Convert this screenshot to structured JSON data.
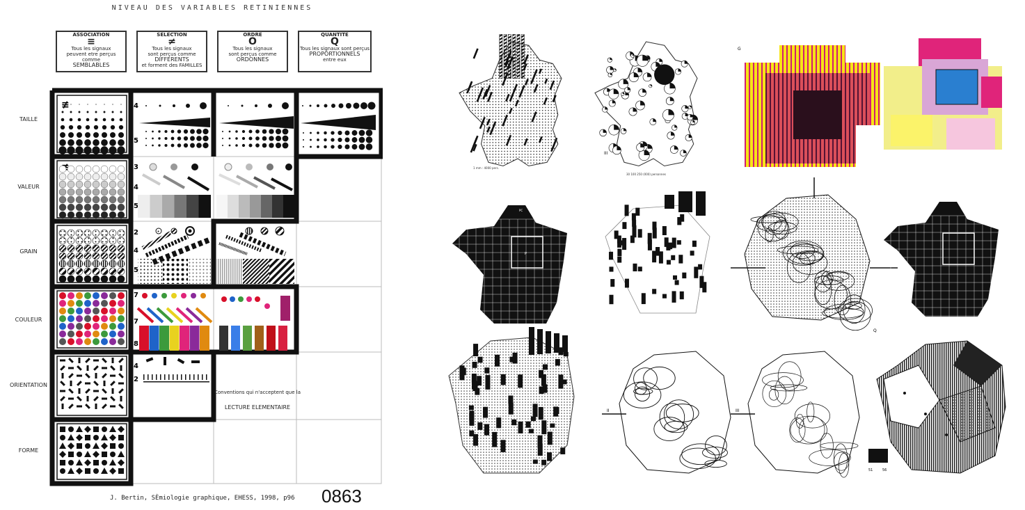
{
  "title": "NIVEAU DES VARIABLES RETINIENNES",
  "headers": [
    {
      "title": "ASSOCIATION",
      "symbol": "≡",
      "lines": [
        "Tous les signaux",
        "peuvent etre perçus comme"
      ],
      "emph": "SEMBLABLES",
      "after": ""
    },
    {
      "title": "SELECTION",
      "symbol": "≠",
      "lines": [
        "Tous les signaux",
        "sont perçus comme"
      ],
      "emph": "DIFFERENTS",
      "after": "et forment des FAMILLES"
    },
    {
      "title": "ORDRE",
      "symbol": "O",
      "lines": [
        "Tous les signaux",
        "sont perçus comme"
      ],
      "emph": "ORDONNES",
      "after": ""
    },
    {
      "title": "QUANTITE",
      "symbol": "Q",
      "lines": [
        "Tous les signaux sont perçus"
      ],
      "emph": "PROPORTIONNELS",
      "after": "entre eux"
    }
  ],
  "rows": [
    "TAILLE",
    "VALEUR",
    "GRAIN",
    "COULEUR",
    "ORIENTATION",
    "FORME"
  ],
  "cell_numbers": {
    "taille_sel": [
      "4",
      "5"
    ],
    "valeur_sel": [
      "3",
      "4",
      "5"
    ],
    "grain_sel": [
      "2",
      "4",
      "5"
    ],
    "couleur_sel": [
      "7",
      "7",
      "8"
    ],
    "orient_sel": [
      "4",
      "2"
    ]
  },
  "symbols": {
    "taille_assoc": "≢",
    "valeur_assoc": "≢"
  },
  "note": [
    "Conventions qui n'acceptent que la",
    "LECTURE ELEMENTAIRE"
  ],
  "credit": "J. Bertin, SÈmiologie graphique, EHESS, 1998, p96",
  "page_number": "0863",
  "colors": {
    "red": "#d8102a",
    "blue": "#1f63c9",
    "green": "#3c9a3c",
    "yellow": "#e8d21f",
    "magenta": "#e0247a",
    "purple": "#8a2a9a",
    "orange": "#e08a10"
  },
  "map_labels": {
    "scale_1": "1 mm : 4000 pers.",
    "pie_legend": "30  100  250  (000) personnes",
    "pie_roman": "III",
    "axis_g": "G",
    "axis_q": "Q",
    "dept_p": "P",
    "dept_pc": "PC",
    "dept_sm": "SM",
    "dept_n": "N",
    "dept_s": "S",
    "legend_nums": [
      "51",
      "56"
    ],
    "roman_markers": [
      "II",
      "III",
      "II"
    ]
  }
}
